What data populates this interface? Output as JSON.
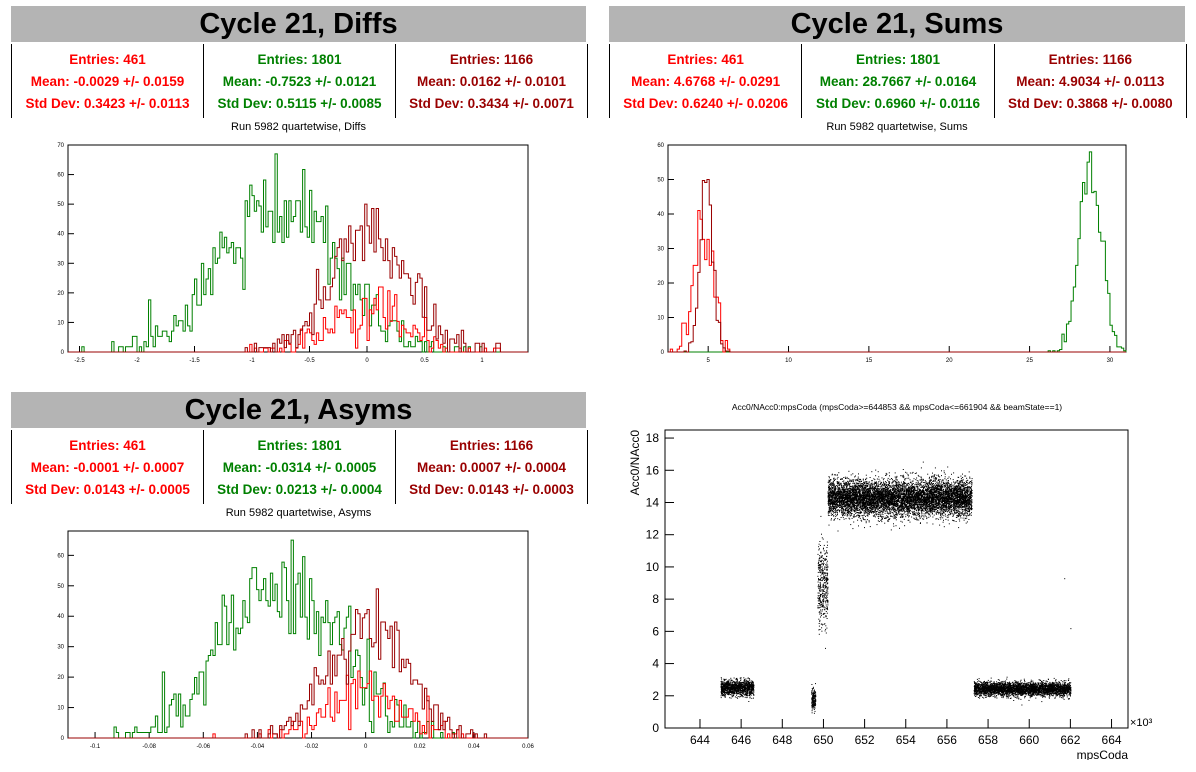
{
  "colors": {
    "red": "#ff0000",
    "green": "#008000",
    "darkred": "#990000",
    "titlebg": "#b4b4b4"
  },
  "panels": {
    "diffs": {
      "title": "Cycle 21, Diffs",
      "subtitle": "Run 5982 quartetwise, Diffs",
      "stats": [
        {
          "entries": "Entries: 461",
          "mean": "Mean: -0.0029 +/- 0.0159",
          "std": "Std Dev: 0.3423 +/- 0.0113"
        },
        {
          "entries": "Entries: 1801",
          "mean": "Mean: -0.7523 +/- 0.0121",
          "std": "Std Dev: 0.5115 +/- 0.0085"
        },
        {
          "entries": "Entries: 1166",
          "mean": "Mean: 0.0162 +/- 0.0101",
          "std": "Std Dev: 0.3434 +/- 0.0071"
        }
      ]
    },
    "sums": {
      "title": "Cycle 21, Sums",
      "subtitle": "Run 5982 quartetwise, Sums",
      "stats": [
        {
          "entries": "Entries: 461",
          "mean": "Mean: 4.6768 +/- 0.0291",
          "std": "Std Dev: 0.6240 +/- 0.0206"
        },
        {
          "entries": "Entries: 1801",
          "mean": "Mean: 28.7667 +/- 0.0164",
          "std": "Std Dev: 0.6960 +/- 0.0116"
        },
        {
          "entries": "Entries: 1166",
          "mean": "Mean: 4.9034 +/- 0.0113",
          "std": "Std Dev: 0.3868 +/- 0.0080"
        }
      ]
    },
    "asyms": {
      "title": "Cycle 21, Asyms",
      "subtitle": "Run 5982 quartetwise, Asyms",
      "stats": [
        {
          "entries": "Entries: 461",
          "mean": "Mean: -0.0001 +/- 0.0007",
          "std": "Std Dev: 0.0143 +/- 0.0005"
        },
        {
          "entries": "Entries: 1801",
          "mean": "Mean: -0.0314 +/- 0.0005",
          "std": "Std Dev: 0.0213 +/- 0.0004"
        },
        {
          "entries": "Entries: 1166",
          "mean": "Mean: 0.0007 +/- 0.0004",
          "std": "Std Dev: 0.0143 +/- 0.0003"
        }
      ]
    },
    "scatter": {
      "title": "Acc0/NAcc0:mpsCoda (mpsCoda>=644853 && mpsCoda<=661904 && beamState==1)"
    }
  },
  "chart_data": [
    {
      "id": "diffs",
      "type": "histogram",
      "xlim": [
        -2.6,
        1.4
      ],
      "ylim": [
        0,
        70
      ],
      "xticks": [
        "-2.5",
        "-2",
        "-1.5",
        "-1",
        "-0.5",
        "0",
        "0.5",
        "1"
      ],
      "yticks": [
        "0",
        "10",
        "20",
        "30",
        "40",
        "50",
        "60",
        "70"
      ],
      "series": [
        {
          "color": "green",
          "mean": -0.7523,
          "sigma": 0.5115,
          "entries": 1801,
          "peak": 67
        },
        {
          "color": "red",
          "mean": -0.0029,
          "sigma": 0.3423,
          "entries": 461,
          "peak": 22
        },
        {
          "color": "darkred",
          "mean": 0.0162,
          "sigma": 0.3434,
          "entries": 1166,
          "peak": 50
        }
      ]
    },
    {
      "id": "sums",
      "type": "histogram",
      "xlim": [
        2.5,
        31
      ],
      "ylim": [
        0,
        60
      ],
      "xticks": [
        "5",
        "10",
        "15",
        "20",
        "25",
        "30"
      ],
      "yticks": [
        "0",
        "10",
        "20",
        "30",
        "40",
        "50",
        "60"
      ],
      "series": [
        {
          "color": "green",
          "mean": 28.7667,
          "sigma": 0.696,
          "entries": 1801,
          "peak": 58
        },
        {
          "color": "red",
          "mean": 4.6768,
          "sigma": 0.624,
          "entries": 461,
          "peak": 41
        },
        {
          "color": "darkred",
          "mean": 4.9034,
          "sigma": 0.3868,
          "entries": 1166,
          "peak": 50
        }
      ]
    },
    {
      "id": "asyms",
      "type": "histogram",
      "xlim": [
        -0.11,
        0.06
      ],
      "ylim": [
        0,
        68
      ],
      "xticks": [
        "-0.1",
        "-0.08",
        "-0.06",
        "-0.04",
        "-0.02",
        "0",
        "0.02",
        "0.04",
        "0.06"
      ],
      "yticks": [
        "0",
        "10",
        "20",
        "30",
        "40",
        "50",
        "60"
      ],
      "series": [
        {
          "color": "green",
          "mean": -0.0314,
          "sigma": 0.0213,
          "entries": 1801,
          "peak": 65
        },
        {
          "color": "red",
          "mean": -0.0001,
          "sigma": 0.0143,
          "entries": 461,
          "peak": 22
        },
        {
          "color": "darkred",
          "mean": 0.0007,
          "sigma": 0.0143,
          "entries": 1166,
          "peak": 49
        }
      ]
    },
    {
      "id": "scatter",
      "type": "scatter",
      "xlabel": "mpsCoda",
      "ylabel": "Acc0/NAcc0",
      "x_multiplier": "×10³",
      "xlim": [
        642.3,
        664.8
      ],
      "ylim": [
        0,
        18.5
      ],
      "xticks": [
        "644",
        "646",
        "648",
        "650",
        "652",
        "654",
        "656",
        "658",
        "660",
        "662",
        "664"
      ],
      "yticks": [
        "0",
        "2",
        "4",
        "6",
        "8",
        "10",
        "12",
        "14",
        "16",
        "18"
      ],
      "clusters": [
        {
          "x": [
            645.0,
            646.6
          ],
          "y_mean": 2.5,
          "y_sd": 0.25
        },
        {
          "x": [
            649.4,
            649.6
          ],
          "y_mean": 1.8,
          "y_sd": 0.35
        },
        {
          "x": [
            649.7,
            650.2
          ],
          "y_mean": 9.0,
          "y_sd": 1.3
        },
        {
          "x": [
            650.2,
            657.2
          ],
          "y_mean": 14.3,
          "y_sd": 0.55
        },
        {
          "x": [
            657.3,
            662.0
          ],
          "y_mean": 2.45,
          "y_sd": 0.22
        }
      ]
    }
  ]
}
